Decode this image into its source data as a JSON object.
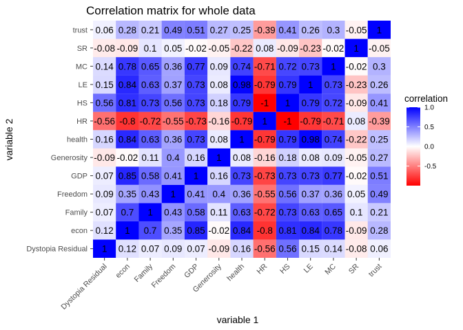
{
  "chart_data": {
    "type": "heatmap",
    "title": "Correlation matrix for whole data",
    "xlabel": "variable 1",
    "ylabel": "variable 2",
    "x_categories": [
      "Dystopia Residual",
      "econ",
      "Family",
      "Freedom",
      "GDP",
      "Generosity",
      "health",
      "HR",
      "HS",
      "LE",
      "MC",
      "SR",
      "trust"
    ],
    "y_categories": [
      "Dystopia Residual",
      "econ",
      "Family",
      "Freedom",
      "GDP",
      "Generosity",
      "health",
      "HR",
      "HS",
      "LE",
      "MC",
      "SR",
      "trust"
    ],
    "values": [
      [
        "1",
        "0.12",
        "0.07",
        "0.09",
        "0.07",
        "-0.09",
        "0.16",
        "-0.56",
        "0.56",
        "0.15",
        "0.14",
        "-0.08",
        "0.06"
      ],
      [
        "0.12",
        "1",
        "0.7",
        "0.35",
        "0.85",
        "-0.02",
        "0.84",
        "-0.8",
        "0.81",
        "0.84",
        "0.78",
        "-0.09",
        "0.28"
      ],
      [
        "0.07",
        "0.7",
        "1",
        "0.43",
        "0.58",
        "0.11",
        "0.63",
        "-0.72",
        "0.73",
        "0.63",
        "0.65",
        "0.1",
        "0.21"
      ],
      [
        "0.09",
        "0.35",
        "0.43",
        "1",
        "0.41",
        "0.4",
        "0.36",
        "-0.55",
        "0.56",
        "0.37",
        "0.36",
        "0.05",
        "0.49"
      ],
      [
        "0.07",
        "0.85",
        "0.58",
        "0.41",
        "1",
        "0.16",
        "0.73",
        "-0.73",
        "0.73",
        "0.73",
        "0.77",
        "-0.02",
        "0.51"
      ],
      [
        "-0.09",
        "-0.02",
        "0.11",
        "0.4",
        "0.16",
        "1",
        "0.08",
        "-0.16",
        "0.18",
        "0.08",
        "0.09",
        "-0.05",
        "0.27"
      ],
      [
        "0.16",
        "0.84",
        "0.63",
        "0.36",
        "0.73",
        "0.08",
        "1",
        "-0.79",
        "0.79",
        "0.98",
        "0.74",
        "-0.22",
        "0.25"
      ],
      [
        "-0.56",
        "-0.8",
        "-0.72",
        "-0.55",
        "-0.73",
        "-0.16",
        "-0.79",
        "1",
        "-1",
        "-0.79",
        "-0.71",
        "0.08",
        "-0.39"
      ],
      [
        "0.56",
        "0.81",
        "0.73",
        "0.56",
        "0.73",
        "0.18",
        "0.79",
        "-1",
        "1",
        "0.79",
        "0.72",
        "-0.09",
        "0.41"
      ],
      [
        "0.15",
        "0.84",
        "0.63",
        "0.37",
        "0.73",
        "0.08",
        "0.98",
        "-0.79",
        "0.79",
        "1",
        "0.73",
        "-0.23",
        "0.26"
      ],
      [
        "0.14",
        "0.78",
        "0.65",
        "0.36",
        "0.77",
        "0.09",
        "0.74",
        "-0.71",
        "0.72",
        "0.73",
        "1",
        "-0.02",
        "0.3"
      ],
      [
        "-0.08",
        "-0.09",
        "0.1",
        "0.05",
        "-0.02",
        "-0.05",
        "-0.22",
        "0.08",
        "-0.09",
        "-0.23",
        "-0.02",
        "1",
        "-0.05"
      ],
      [
        "0.06",
        "0.28",
        "0.21",
        "0.49",
        "0.51",
        "0.27",
        "0.25",
        "-0.39",
        "0.41",
        "0.26",
        "0.3",
        "-0.05",
        "1"
      ]
    ],
    "color_scale": {
      "low": "#ff0000",
      "mid": "#ffffff",
      "high": "#0000ff",
      "min": -1,
      "max": 1
    },
    "panel_background": "#ebebeb",
    "legend": {
      "title": "correlation",
      "ticks": [
        "1.0",
        "0.5",
        "0.0",
        "-0.5"
      ],
      "position": "right"
    }
  }
}
